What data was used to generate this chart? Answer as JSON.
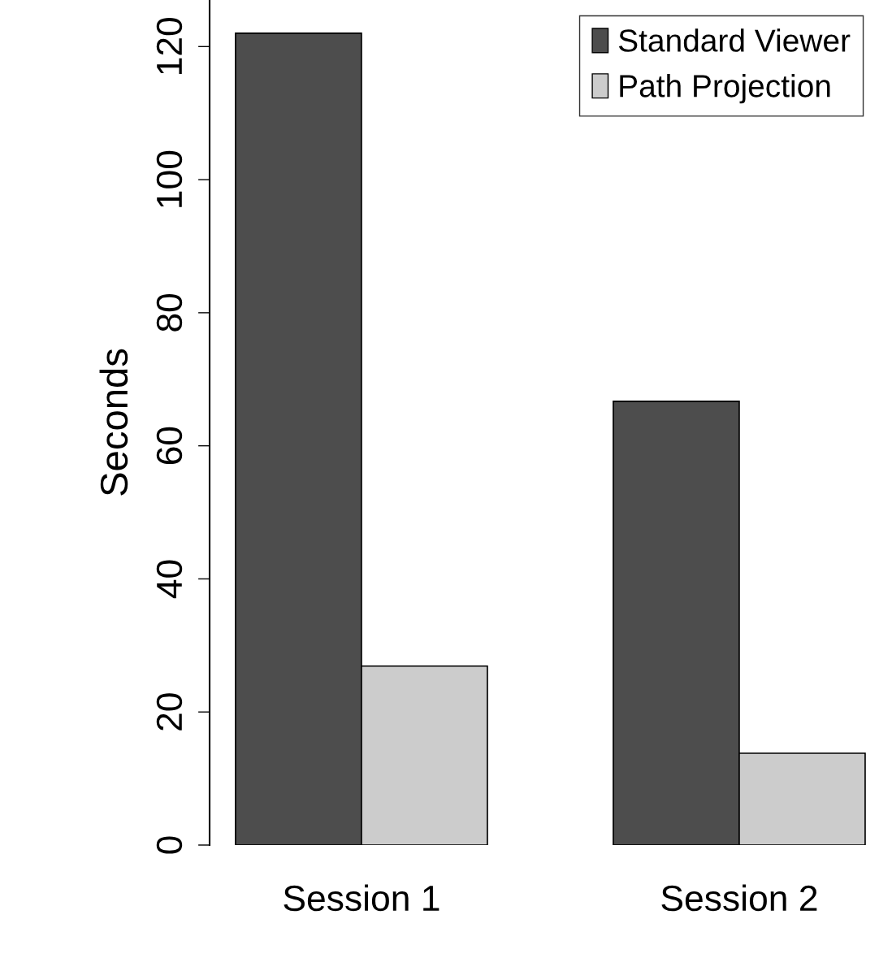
{
  "chart_data": {
    "type": "bar",
    "ylabel": "Seconds",
    "categories": [
      "Session 1",
      "Session 2"
    ],
    "series": [
      {
        "name": "Standard Viewer",
        "color": "#4d4d4d",
        "values": [
          122,
          66.7
        ]
      },
      {
        "name": "Path Projection",
        "color": "#cccccc",
        "values": [
          26.9,
          13.8
        ]
      }
    ],
    "ylim": [
      0,
      127
    ],
    "yticks": [
      0,
      20,
      40,
      60,
      80,
      100,
      120
    ],
    "grid": false,
    "legend": "top right"
  }
}
